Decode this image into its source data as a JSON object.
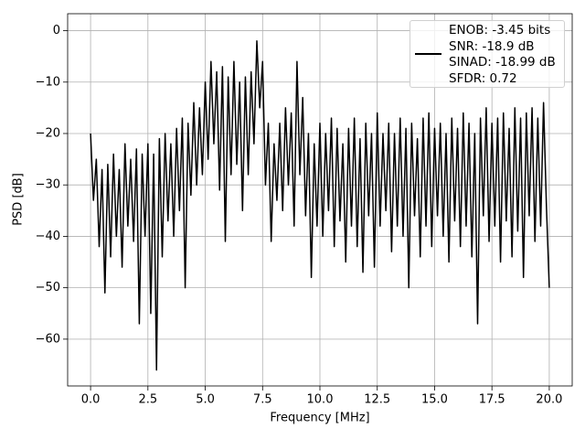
{
  "chart_data": {
    "type": "line",
    "xlabel": "Frequency [MHz]",
    "ylabel": "PSD [dB]",
    "x": [
      0,
      0.125,
      0.25,
      0.375,
      0.5,
      0.625,
      0.75,
      0.875,
      1,
      1.125,
      1.25,
      1.375,
      1.5,
      1.625,
      1.75,
      1.875,
      2,
      2.125,
      2.25,
      2.375,
      2.5,
      2.625,
      2.75,
      2.875,
      3,
      3.125,
      3.25,
      3.375,
      3.5,
      3.625,
      3.75,
      3.875,
      4,
      4.125,
      4.25,
      4.375,
      4.5,
      4.625,
      4.75,
      4.875,
      5,
      5.125,
      5.25,
      5.375,
      5.5,
      5.625,
      5.75,
      5.875,
      6,
      6.125,
      6.25,
      6.375,
      6.5,
      6.625,
      6.75,
      6.875,
      7,
      7.125,
      7.25,
      7.375,
      7.5,
      7.625,
      7.75,
      7.875,
      8,
      8.125,
      8.25,
      8.375,
      8.5,
      8.625,
      8.75,
      8.875,
      9,
      9.125,
      9.25,
      9.375,
      9.5,
      9.625,
      9.75,
      9.875,
      10,
      10.125,
      10.25,
      10.375,
      10.5,
      10.625,
      10.75,
      10.875,
      11,
      11.125,
      11.25,
      11.375,
      11.5,
      11.625,
      11.75,
      11.875,
      12,
      12.125,
      12.25,
      12.375,
      12.5,
      12.625,
      12.75,
      12.875,
      13,
      13.125,
      13.25,
      13.375,
      13.5,
      13.625,
      13.75,
      13.875,
      14,
      14.125,
      14.25,
      14.375,
      14.5,
      14.625,
      14.75,
      14.875,
      15,
      15.125,
      15.25,
      15.375,
      15.5,
      15.625,
      15.75,
      15.875,
      16,
      16.125,
      16.25,
      16.375,
      16.5,
      16.625,
      16.75,
      16.875,
      17,
      17.125,
      17.25,
      17.375,
      17.5,
      17.625,
      17.75,
      17.875,
      18,
      18.125,
      18.25,
      18.375,
      18.5,
      18.625,
      18.75,
      18.875,
      19,
      19.125,
      19.25,
      19.375,
      19.5,
      19.625,
      19.75,
      19.875,
      20
    ],
    "series": [
      {
        "name": "ENOB: -3.45 bits\nSNR: -18.9 dB\nSINAD: -18.99 dB\nSFDR: 0.72",
        "color": "#000000",
        "values": [
          -20,
          -33,
          -25,
          -42,
          -27,
          -51,
          -26,
          -44,
          -24,
          -40,
          -27,
          -46,
          -22,
          -38,
          -25,
          -41,
          -23,
          -57,
          -24,
          -40,
          -22,
          -55,
          -24,
          -66,
          -21,
          -44,
          -20,
          -37,
          -22,
          -40,
          -19,
          -35,
          -17,
          -50,
          -18,
          -32,
          -14,
          -30,
          -15,
          -28,
          -10,
          -25,
          -6,
          -22,
          -8,
          -31,
          -7,
          -41,
          -9,
          -28,
          -6,
          -26,
          -10,
          -35,
          -9,
          -28,
          -8,
          -22,
          -2,
          -15,
          -6,
          -30,
          -18,
          -41,
          -22,
          -33,
          -18,
          -35,
          -15,
          -30,
          -16,
          -38,
          -6,
          -28,
          -13,
          -36,
          -20,
          -48,
          -22,
          -38,
          -18,
          -40,
          -20,
          -35,
          -17,
          -42,
          -19,
          -37,
          -22,
          -45,
          -19,
          -38,
          -17,
          -42,
          -21,
          -47,
          -18,
          -36,
          -20,
          -46,
          -16,
          -38,
          -20,
          -35,
          -18,
          -43,
          -20,
          -38,
          -17,
          -40,
          -19,
          -50,
          -18,
          -36,
          -21,
          -44,
          -17,
          -38,
          -16,
          -42,
          -19,
          -36,
          -18,
          -40,
          -20,
          -45,
          -17,
          -37,
          -19,
          -42,
          -16,
          -38,
          -18,
          -44,
          -20,
          -57,
          -17,
          -36,
          -15,
          -41,
          -18,
          -38,
          -17,
          -45,
          -16,
          -37,
          -19,
          -44,
          -15,
          -39,
          -17,
          -48,
          -16,
          -36,
          -15,
          -41,
          -17,
          -38,
          -14,
          -34,
          -50
        ]
      }
    ],
    "xlim": [
      -1,
      21
    ],
    "xticks": [
      {
        "value": 0,
        "label": "0.0"
      },
      {
        "value": 2.5,
        "label": "2.5"
      },
      {
        "value": 5,
        "label": "5.0"
      },
      {
        "value": 7.5,
        "label": "7.5"
      },
      {
        "value": 10,
        "label": "10.0"
      },
      {
        "value": 12.5,
        "label": "12.5"
      },
      {
        "value": 15,
        "label": "15.0"
      },
      {
        "value": 17.5,
        "label": "17.5"
      },
      {
        "value": 20,
        "label": "20.0"
      }
    ],
    "ylim": [
      -69.1,
      3.3
    ],
    "yticks": [
      0,
      {
        "value": -10,
        "label": "−10"
      },
      {
        "value": -20,
        "label": "−20"
      },
      {
        "value": -30,
        "label": "−30"
      },
      {
        "value": -40,
        "label": "−40"
      },
      {
        "value": -50,
        "label": "−50"
      },
      {
        "value": -60,
        "label": "−60"
      }
    ],
    "grid": true,
    "legend": "upper right"
  }
}
